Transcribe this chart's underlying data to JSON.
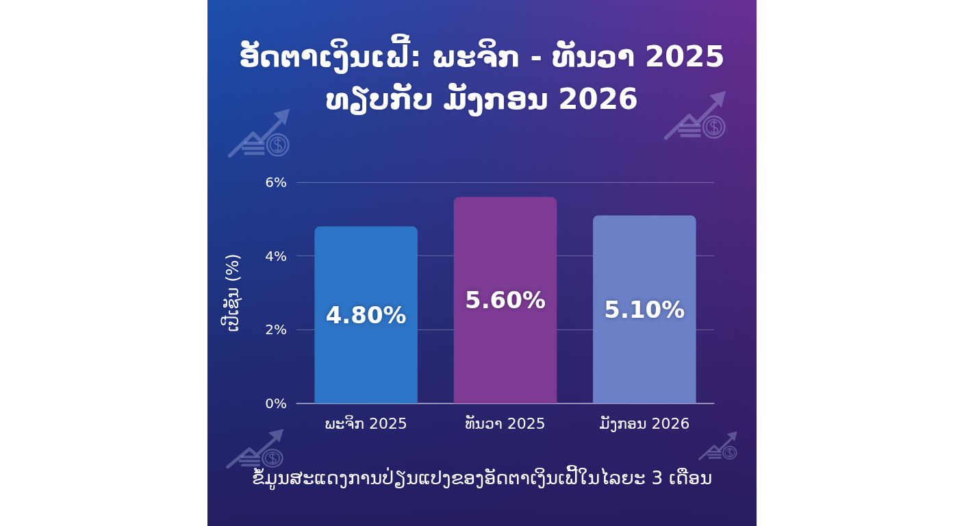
{
  "chart_data": {
    "type": "bar",
    "title": "ອັດຕາເງິນເຟີ້: ພະຈິກ - ທັນວາ 2025\nທຽບກັບ ມັງກອນ 2026",
    "ylabel": "ເປີເຊັນ (%)",
    "categories": [
      "ພະຈິກ 2025",
      "ທັນວາ 2025",
      "ມັງກອນ 2026"
    ],
    "values": [
      4.8,
      5.6,
      5.1
    ],
    "colors": [
      "#2e74c6",
      "#7d3b94",
      "#6b80c7"
    ],
    "value_labels": [
      "4.80%",
      "5.60%",
      "5.10%"
    ],
    "ylim": [
      0,
      6
    ],
    "yticks": [
      {
        "value": 0,
        "label": "0%"
      },
      {
        "value": 2,
        "label": "2%"
      },
      {
        "value": 4,
        "label": "4%"
      },
      {
        "value": 6,
        "label": "6%"
      }
    ],
    "grid": "y",
    "annotations": [
      "ຂໍ້ມູນສະແດງການປ່ຽນແປງຂອງອັດຕາເງິນເຟີ້ໃນໄລຍະ 3 ເດືອນ"
    ]
  }
}
